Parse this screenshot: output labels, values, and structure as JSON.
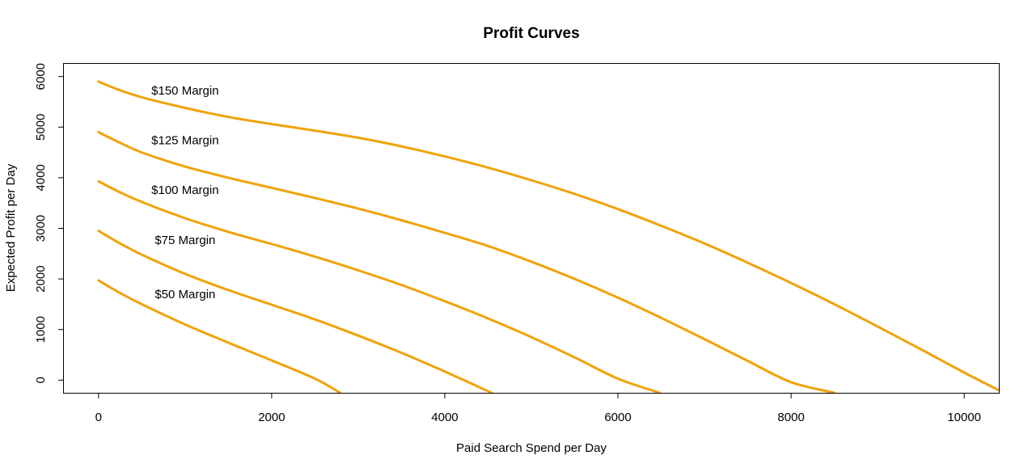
{
  "chart_data": {
    "type": "line",
    "title": "Profit Curves",
    "xlabel": "Paid Search Spend per Day",
    "ylabel": "Expected Profit per Day",
    "xlim": [
      -400,
      10400
    ],
    "ylim": [
      -250,
      6250
    ],
    "xticks": [
      0,
      2000,
      4000,
      6000,
      8000,
      10000
    ],
    "yticks": [
      0,
      1000,
      2000,
      3000,
      4000,
      5000,
      6000
    ],
    "grid": false,
    "line_color": "#F0A30A",
    "series": [
      {
        "label": "$150 Margin",
        "label_at": [
          1000,
          5720
        ],
        "x": [
          0,
          200,
          500,
          1000,
          1500,
          2000,
          2500,
          3000,
          3500,
          4000,
          4500,
          5000,
          5500,
          6000,
          6500,
          7000,
          7500,
          8000,
          8500,
          9000,
          9500,
          10000,
          10400
        ],
        "y": [
          5900,
          5760,
          5590,
          5380,
          5200,
          5060,
          4930,
          4790,
          4620,
          4420,
          4200,
          3950,
          3680,
          3380,
          3050,
          2700,
          2320,
          1920,
          1500,
          1060,
          610,
          150,
          -200
        ]
      },
      {
        "label": "$125 Margin",
        "label_at": [
          1000,
          4740
        ],
        "x": [
          0,
          250,
          500,
          1000,
          1500,
          2000,
          2500,
          3000,
          3500,
          4000,
          4500,
          5000,
          5500,
          6000,
          6500,
          7000,
          7500,
          8000,
          8500
        ],
        "y": [
          4900,
          4690,
          4500,
          4220,
          4000,
          3800,
          3600,
          3390,
          3160,
          2910,
          2650,
          2340,
          2000,
          1630,
          1230,
          810,
          380,
          -40,
          -250
        ]
      },
      {
        "label": "$100 Margin",
        "label_at": [
          1000,
          3760
        ],
        "x": [
          0,
          250,
          500,
          1000,
          1500,
          2000,
          2500,
          3000,
          3500,
          4000,
          4500,
          5000,
          5500,
          6000,
          6480
        ],
        "y": [
          3930,
          3710,
          3520,
          3200,
          2930,
          2690,
          2440,
          2170,
          1880,
          1560,
          1220,
          850,
          450,
          30,
          -250
        ]
      },
      {
        "label": "$75 Margin",
        "label_at": [
          1000,
          2770
        ],
        "x": [
          0,
          250,
          500,
          1000,
          1500,
          2000,
          2500,
          3000,
          3500,
          4000,
          4540
        ],
        "y": [
          2950,
          2700,
          2480,
          2100,
          1780,
          1490,
          1200,
          880,
          540,
          170,
          -250
        ]
      },
      {
        "label": "$50 Margin",
        "label_at": [
          1000,
          1700
        ],
        "x": [
          0,
          250,
          500,
          1000,
          1500,
          2000,
          2500,
          2790
        ],
        "y": [
          1970,
          1720,
          1500,
          1100,
          740,
          390,
          30,
          -250
        ]
      }
    ]
  }
}
